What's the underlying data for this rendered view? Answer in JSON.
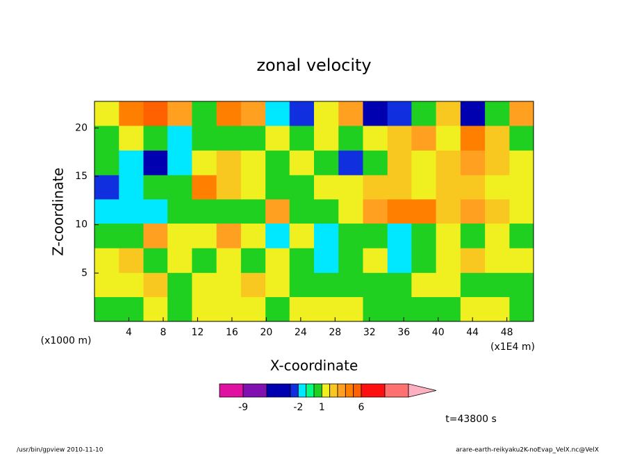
{
  "chart_data": {
    "type": "contour",
    "title": "zonal velocity",
    "xlabel": "X-coordinate",
    "ylabel": "Z-coordinate",
    "y_unit_label": "(x1000 m)",
    "x_unit_label": "(x1E4 m)",
    "time_label": "t=43800 s",
    "footer_left": "/usr/bin/gpview  2010-11-10",
    "footer_right": "arare-earth-reikyaku2K-noEvap_VelX.nc@VelX",
    "xlim": [
      0,
      51.1
    ],
    "ylim": [
      0,
      22.75
    ],
    "xticks": [
      4,
      8,
      12,
      16,
      20,
      24,
      28,
      32,
      36,
      40,
      44,
      48
    ],
    "yticks": [
      5,
      10,
      15,
      20
    ],
    "grid": false,
    "x": [
      1.4,
      4.3,
      7.1,
      9.9,
      12.8,
      15.6,
      18.5,
      21.3,
      24.1,
      27,
      29.8,
      32.7,
      35.5,
      38.3,
      41.2,
      44,
      46.9,
      49.7
    ],
    "y": [
      1.3,
      3.8,
      6.3,
      8.9,
      11.4,
      13.9,
      16.4,
      19,
      21.5
    ],
    "z": [
      [
        0.5,
        0.5,
        1.5,
        0.5,
        1.5,
        1.5,
        1.5,
        0.5,
        1.5,
        1.5,
        1.5,
        0.5,
        0,
        0.5,
        0.5,
        1.5,
        1.5,
        0.5
      ],
      [
        1.5,
        1.5,
        2,
        0.5,
        1.5,
        1.5,
        2,
        1.5,
        0.5,
        0,
        0.5,
        0,
        0,
        1.5,
        1.5,
        0,
        0.5,
        0.5
      ],
      [
        1.5,
        2,
        0.5,
        1.5,
        0.5,
        1.5,
        0.5,
        1.5,
        0.5,
        -1.5,
        0,
        1.5,
        -1.5,
        0,
        1.5,
        2,
        1.5,
        1.5
      ],
      [
        0,
        0.5,
        3,
        1.5,
        1.5,
        3,
        1.5,
        -1.5,
        1.5,
        -1.5,
        0,
        0.5,
        -1.5,
        0,
        1.5,
        0.5,
        1.5,
        0.5
      ],
      [
        -1.5,
        -1.5,
        -1.5,
        0,
        0.5,
        0.5,
        0,
        3,
        0.5,
        0,
        1.5,
        3,
        4,
        4,
        2,
        3,
        2,
        1.5
      ],
      [
        -2.5,
        -1.5,
        0,
        0.5,
        4,
        2,
        1.5,
        0,
        0.5,
        1.5,
        1.5,
        2,
        2,
        1.5,
        2,
        2,
        1.5,
        1.5
      ],
      [
        0,
        -1.5,
        -4,
        -1.5,
        1.5,
        2,
        1.5,
        0.5,
        1.5,
        0.5,
        -2.5,
        0.5,
        2,
        1.5,
        2,
        3,
        2,
        1.5
      ],
      [
        0.5,
        1.5,
        0,
        -1.5,
        0,
        0,
        0.5,
        1.5,
        0.5,
        1.5,
        0.5,
        1.5,
        2,
        3,
        1.5,
        4,
        2,
        0.5
      ],
      [
        1.5,
        4,
        5,
        3,
        0.5,
        4,
        3,
        -1.5,
        -2.5,
        1.5,
        3,
        -3.5,
        -3,
        0.5,
        2,
        -4,
        0.5,
        3
      ]
    ],
    "colorbar": {
      "levels": [
        -12,
        -9,
        -6,
        -3,
        -2,
        -1,
        0,
        1,
        2,
        3,
        4,
        5,
        6,
        9,
        12
      ],
      "colors": [
        "#e010a0",
        "#8010b0",
        "#0000b0",
        "#1030e0",
        "#00e8ff",
        "#00ff80",
        "#20d020",
        "#f0f020",
        "#f8c820",
        "#ffa020",
        "#ff8000",
        "#ff6000",
        "#ff1010",
        "#ff7070",
        "#ffb0c0"
      ],
      "ticks": [
        -9,
        -2,
        1,
        6
      ]
    }
  }
}
